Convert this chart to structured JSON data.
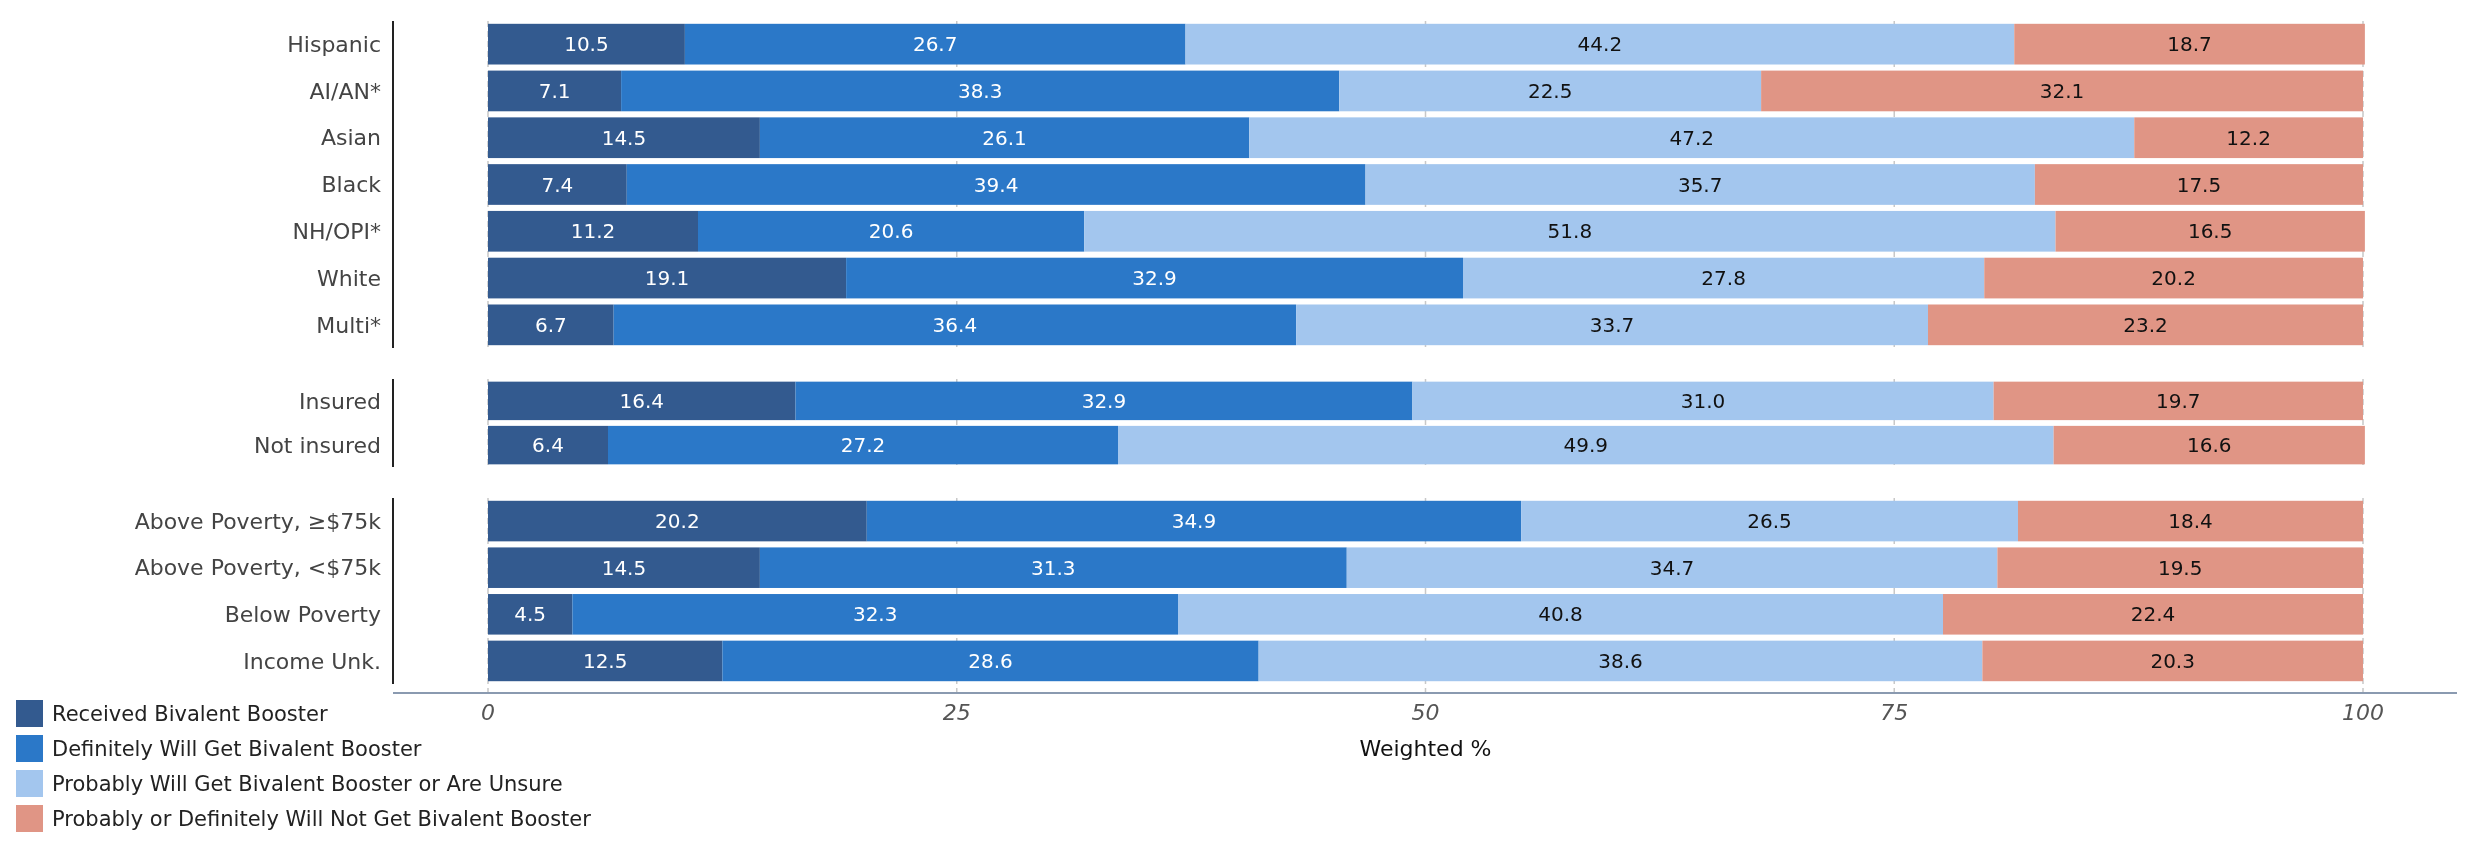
{
  "chart_data": [
    {
      "type": "bar",
      "orientation": "horizontal",
      "stacked": true,
      "categories": [
        "Hispanic",
        "AI/AN*",
        "Asian",
        "Black",
        "NH/OPI*",
        "White",
        "Multi*"
      ],
      "series": [
        {
          "color": "#335a8f",
          "values": [
            10.5,
            7.1,
            14.5,
            7.4,
            11.2,
            19.1,
            6.7
          ]
        },
        {
          "color": "#2b78c8",
          "values": [
            26.7,
            38.3,
            26.1,
            39.4,
            20.6,
            32.9,
            36.4
          ]
        },
        {
          "color": "#a3c6ee",
          "values": [
            44.2,
            22.5,
            47.2,
            35.7,
            51.8,
            27.8,
            33.7
          ]
        },
        {
          "color": "#e09585",
          "values": [
            18.7,
            32.1,
            12.2,
            17.5,
            16.5,
            20.2,
            23.2
          ]
        }
      ],
      "xlim": [
        0,
        100
      ],
      "xticks": [
        0,
        25,
        50,
        75,
        100
      ],
      "grid": "x",
      "data_labels": true,
      "tick_labels": "y"
    },
    {
      "type": "bar",
      "orientation": "horizontal",
      "stacked": true,
      "categories": [
        "Insured",
        "Not insured"
      ],
      "series": [
        {
          "color": "#335a8f",
          "values": [
            16.4,
            6.4
          ]
        },
        {
          "color": "#2b78c8",
          "values": [
            32.9,
            27.2
          ]
        },
        {
          "color": "#a3c6ee",
          "values": [
            31.0,
            49.9
          ],
          "value_labels": [
            "31.0",
            "49.9"
          ]
        },
        {
          "color": "#e09585",
          "values": [
            19.7,
            16.6
          ]
        }
      ],
      "xlim": [
        0,
        100
      ],
      "xticks": [
        0,
        25,
        50,
        75,
        100
      ],
      "grid": "x",
      "data_labels": true,
      "tick_labels": "y"
    },
    {
      "type": "bar",
      "orientation": "horizontal",
      "stacked": true,
      "categories": [
        "Above Poverty, ≥$75k",
        "Above Poverty, <$75k",
        "Below Poverty",
        "Income Unk."
      ],
      "series": [
        {
          "name": "Received Bivalent Booster",
          "color": "#335a8f",
          "values": [
            20.2,
            14.5,
            4.5,
            12.5
          ]
        },
        {
          "name": "Definitely Will Get Bivalent Booster",
          "color": "#2b78c8",
          "values": [
            34.9,
            31.3,
            32.3,
            28.6
          ]
        },
        {
          "name": "Probably Will Get Bivalent Booster or Are Unsure",
          "color": "#a3c6ee",
          "values": [
            26.5,
            34.7,
            40.8,
            38.6
          ]
        },
        {
          "name": "Probably or Definitely Will Not Get Bivalent Booster",
          "color": "#e09585",
          "values": [
            18.4,
            19.5,
            22.4,
            20.3
          ]
        }
      ],
      "xlim": [
        0,
        100
      ],
      "xticks": [
        0,
        25,
        50,
        75,
        100
      ],
      "grid": "x",
      "data_labels": true,
      "xlabel": "Weighted %",
      "legend": "bottom left"
    }
  ]
}
